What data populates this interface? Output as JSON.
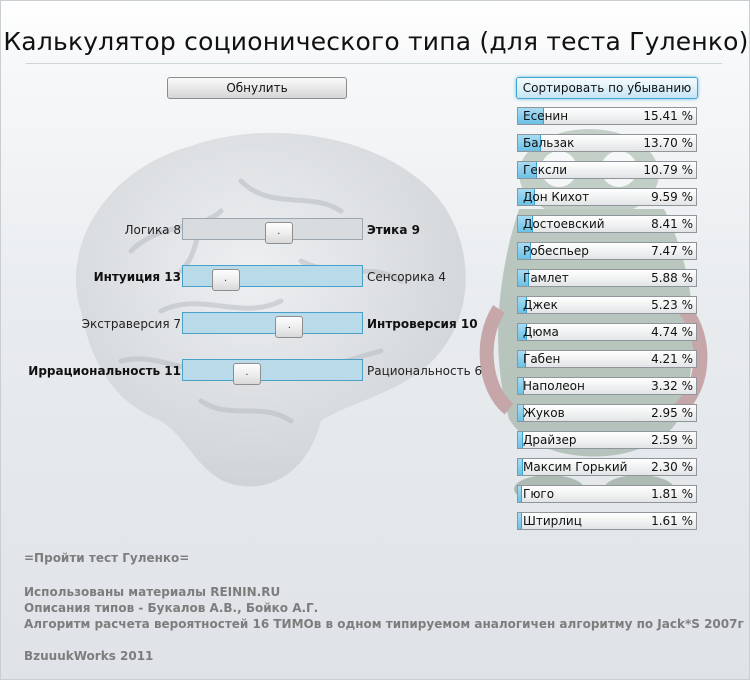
{
  "title": "Калькулятор соционического типа (для теста Гуленко)",
  "buttons": {
    "reset": "Обнулить",
    "sort": "Сортировать по убыванию"
  },
  "sliders": [
    {
      "left": "Логика 8",
      "right": "Этика 9",
      "bold_side": "right",
      "thumb": ".",
      "value_pct": 52.9
    },
    {
      "left": "Интуиция 13",
      "right": "Сенсорика 4",
      "bold_side": "left",
      "thumb": ".",
      "value_pct": 23.5
    },
    {
      "left": "Экстраверсия 7",
      "right": "Интроверсия 10",
      "bold_side": "right",
      "thumb": ".",
      "value_pct": 58.8
    },
    {
      "left": "Иррациональность 11",
      "right": "Рациональность 6",
      "bold_side": "left",
      "thumb": ".",
      "value_pct": 35.3
    }
  ],
  "types": [
    {
      "name": "Есенин",
      "pct": "15.41 %",
      "value": 15.41
    },
    {
      "name": "Бальзак",
      "pct": "13.70 %",
      "value": 13.7
    },
    {
      "name": "Гексли",
      "pct": "10.79 %",
      "value": 10.79
    },
    {
      "name": "Дон Кихот",
      "pct": "9.59 %",
      "value": 9.59
    },
    {
      "name": "Достоевский",
      "pct": "8.41 %",
      "value": 8.41
    },
    {
      "name": "Робеспьер",
      "pct": "7.47 %",
      "value": 7.47
    },
    {
      "name": "Гамлет",
      "pct": "5.88 %",
      "value": 5.88
    },
    {
      "name": "Джек",
      "pct": "5.23 %",
      "value": 5.23
    },
    {
      "name": "Дюма",
      "pct": "4.74 %",
      "value": 4.74
    },
    {
      "name": "Габен",
      "pct": "4.21 %",
      "value": 4.21
    },
    {
      "name": "Наполеон",
      "pct": "3.32 %",
      "value": 3.32
    },
    {
      "name": "Жуков",
      "pct": "2.95 %",
      "value": 2.95
    },
    {
      "name": "Драйзер",
      "pct": "2.59 %",
      "value": 2.59
    },
    {
      "name": "Максим Горький",
      "pct": "2.30 %",
      "value": 2.3
    },
    {
      "name": "Гюго",
      "pct": "1.81 %",
      "value": 1.81
    },
    {
      "name": "Штирлиц",
      "pct": "1.61 %",
      "value": 1.61
    }
  ],
  "footer": {
    "test_link": "=Пройти тест Гуленко=",
    "credit_1": "Использованы материалы REININ.RU",
    "credit_2": "Описания типов - Букалов А.В., Бойко А.Г.",
    "credit_3": "Алгоритм расчета вероятностей 16 ТИМОв в одном типируемом аналогичен алгоритму по Jack*S 2007г",
    "brand": "BzuuukWorks 2011"
  },
  "colors": {
    "accent": "#6cc1e6",
    "accent_border": "#3fa6cf",
    "footer_text": "#7d7d7d"
  },
  "icons": {
    "background_left": "brain-icon",
    "background_right": "mascot-icon"
  }
}
